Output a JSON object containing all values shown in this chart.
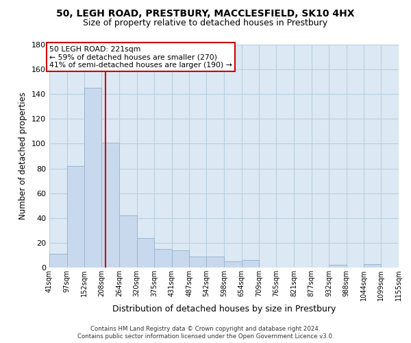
{
  "title1": "50, LEGH ROAD, PRESTBURY, MACCLESFIELD, SK10 4HX",
  "title2": "Size of property relative to detached houses in Prestbury",
  "xlabel": "Distribution of detached houses by size in Prestbury",
  "ylabel": "Number of detached properties",
  "bin_edges": [
    41,
    97,
    152,
    208,
    264,
    320,
    375,
    431,
    487,
    542,
    598,
    654,
    709,
    765,
    821,
    877,
    932,
    988,
    1044,
    1099,
    1155
  ],
  "bar_heights": [
    11,
    82,
    145,
    101,
    42,
    24,
    15,
    14,
    9,
    9,
    5,
    6,
    0,
    0,
    0,
    0,
    2,
    0,
    3,
    0
  ],
  "bar_color": "#c8d9ed",
  "bar_edgecolor": "#9ab5cf",
  "vline_x": 221,
  "vline_color": "#cc0000",
  "ann_line1": "50 LEGH ROAD: 221sqm",
  "ann_line2": "← 59% of detached houses are smaller (270)",
  "ann_line3": "41% of semi-detached houses are larger (190) →",
  "ylim": [
    0,
    180
  ],
  "yticks": [
    0,
    20,
    40,
    60,
    80,
    100,
    120,
    140,
    160,
    180
  ],
  "tick_labels": [
    "41sqm",
    "97sqm",
    "152sqm",
    "208sqm",
    "264sqm",
    "320sqm",
    "375sqm",
    "431sqm",
    "487sqm",
    "542sqm",
    "598sqm",
    "654sqm",
    "709sqm",
    "765sqm",
    "821sqm",
    "877sqm",
    "932sqm",
    "988sqm",
    "1044sqm",
    "1099sqm",
    "1155sqm"
  ],
  "footer1": "Contains HM Land Registry data © Crown copyright and database right 2024.",
  "footer2": "Contains public sector information licensed under the Open Government Licence v3.0.",
  "grid_color": "#b8cfe0",
  "background_color": "#dce8f3"
}
